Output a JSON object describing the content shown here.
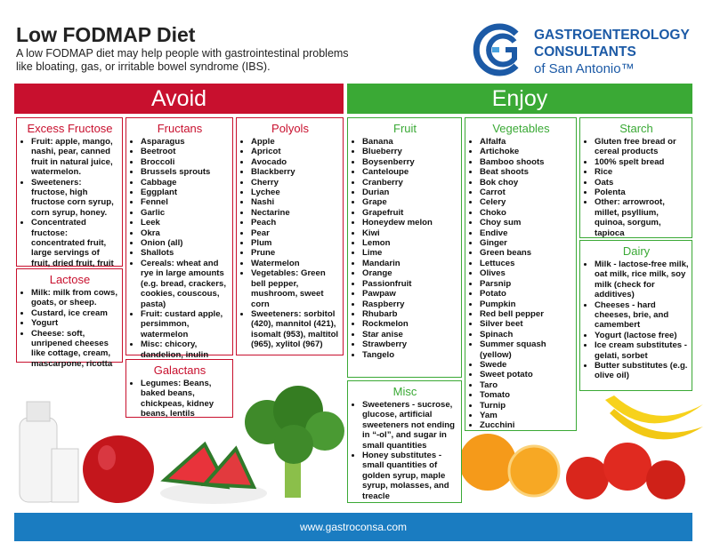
{
  "header": {
    "title": "Low FODMAP Diet",
    "subtitle_lines": [
      "A low FODMAP diet may help people with gastrointestinal problems",
      "like bloating, gas, or irritable bowel syndrome (IBS)."
    ]
  },
  "logo": {
    "line1": "GASTROENTEROLOGY",
    "line2": "CONSULTANTS",
    "line3": "of San Antonio™"
  },
  "avoid": {
    "label": "Avoid",
    "boxes": [
      {
        "title": "Excess Fructose",
        "items": [
          "Fruit: apple, mango, nashi, pear, canned fruit in natural juice, watermelon.",
          "Sweeteners: fructose, high fructose corn syrup, corn syrup, honey.",
          "Concentrated fructose: concentrated fruit, large servings of fruit, dried fruit, fruit juice."
        ]
      },
      {
        "title": "Lactose",
        "items": [
          "Milk: milk from cows, goats, or sheep.",
          "Custard, ice cream",
          "Yogurt",
          "Cheese: soft, unripened cheeses like cottage, cream, mascarpone, ricotta"
        ]
      },
      {
        "title": "Fructans",
        "items": [
          "Asparagus",
          "Beetroot",
          "Broccoli",
          "Brussels sprouts",
          "Cabbage",
          "Eggplant",
          "Fennel",
          "Garlic",
          "Leek",
          "Okra",
          "Onion (all)",
          "Shallots",
          "Cereals: wheat and rye in large amounts (e.g. bread, crackers, cookies, couscous, pasta)",
          "Fruit: custard apple, persimmon, watermelon",
          "Misc: chicory, dandelion, inulin"
        ]
      },
      {
        "title": "Galactans",
        "items": [
          "Legumes: Beans, baked beans, chickpeas, kidney beans, lentils"
        ]
      },
      {
        "title": "Polyols",
        "items": [
          "Apple",
          "Apricot",
          "Avocado",
          "Blackberry",
          "Cherry",
          "Lychee",
          "Nashi",
          "Nectarine",
          "Peach",
          "Pear",
          "Plum",
          "Prune",
          "Watermelon",
          "Vegetables: Green bell pepper, mushroom, sweet corn",
          "Sweeteners: sorbitol (420), mannitol (421), isomalt (953), maltitol (965), xylitol (967)"
        ]
      }
    ]
  },
  "enjoy": {
    "label": "Enjoy",
    "boxes": [
      {
        "title": "Fruit",
        "items": [
          "Banana",
          "Blueberry",
          "Boysenberry",
          "Canteloupe",
          "Cranberry",
          "Durian",
          "Grape",
          "Grapefruit",
          "Honeydew melon",
          "Kiwi",
          "Lemon",
          "Lime",
          "Mandarin",
          "Orange",
          "Passionfruit",
          "Pawpaw",
          "Raspberry",
          "Rhubarb",
          "Rockmelon",
          "Star anise",
          "Strawberry",
          "Tangelo"
        ]
      },
      {
        "title": "Misc",
        "items": [
          "Sweeteners - sucrose, glucose, artificial sweeteners not ending in “-ol”, and sugar in small quantities",
          "Honey substitutes - small quantities of golden syrup, maple syrup, molasses, and treacle"
        ]
      },
      {
        "title": "Vegetables",
        "items": [
          "Alfalfa",
          "Artichoke",
          "Bamboo shoots",
          "Beat shoots",
          "Bok choy",
          "Carrot",
          "Celery",
          "Choko",
          "Choy sum",
          "Endive",
          "Ginger",
          "Green beans",
          "Lettuces",
          "Olives",
          "Parsnip",
          "Potato",
          "Pumpkin",
          "Red bell pepper",
          "Silver beet",
          "Spinach",
          "Summer squash (yellow)",
          "Swede",
          "Sweet potato",
          "Taro",
          "Tomato",
          "Turnip",
          "Yam",
          "Zucchini"
        ]
      },
      {
        "title": "Starch",
        "items": [
          "Gluten free bread or cereal products",
          "100% spelt bread",
          "Rice",
          "Oats",
          "Polenta",
          "Other: arrowroot, millet, psyllium, quinoa, sorgum, tapioca"
        ]
      },
      {
        "title": "Dairy",
        "items": [
          "Milk - lactose-free milk, oat milk, rice milk, soy milk (check for additives)",
          "Cheeses - hard cheeses, brie, and camembert",
          "Yogurt (lactose free)",
          "Ice cream substitutes - gelati, sorbet",
          "Butter substitutes (e.g. olive oil)"
        ]
      }
    ]
  },
  "footer": {
    "url": "www.gastroconsa.com"
  }
}
